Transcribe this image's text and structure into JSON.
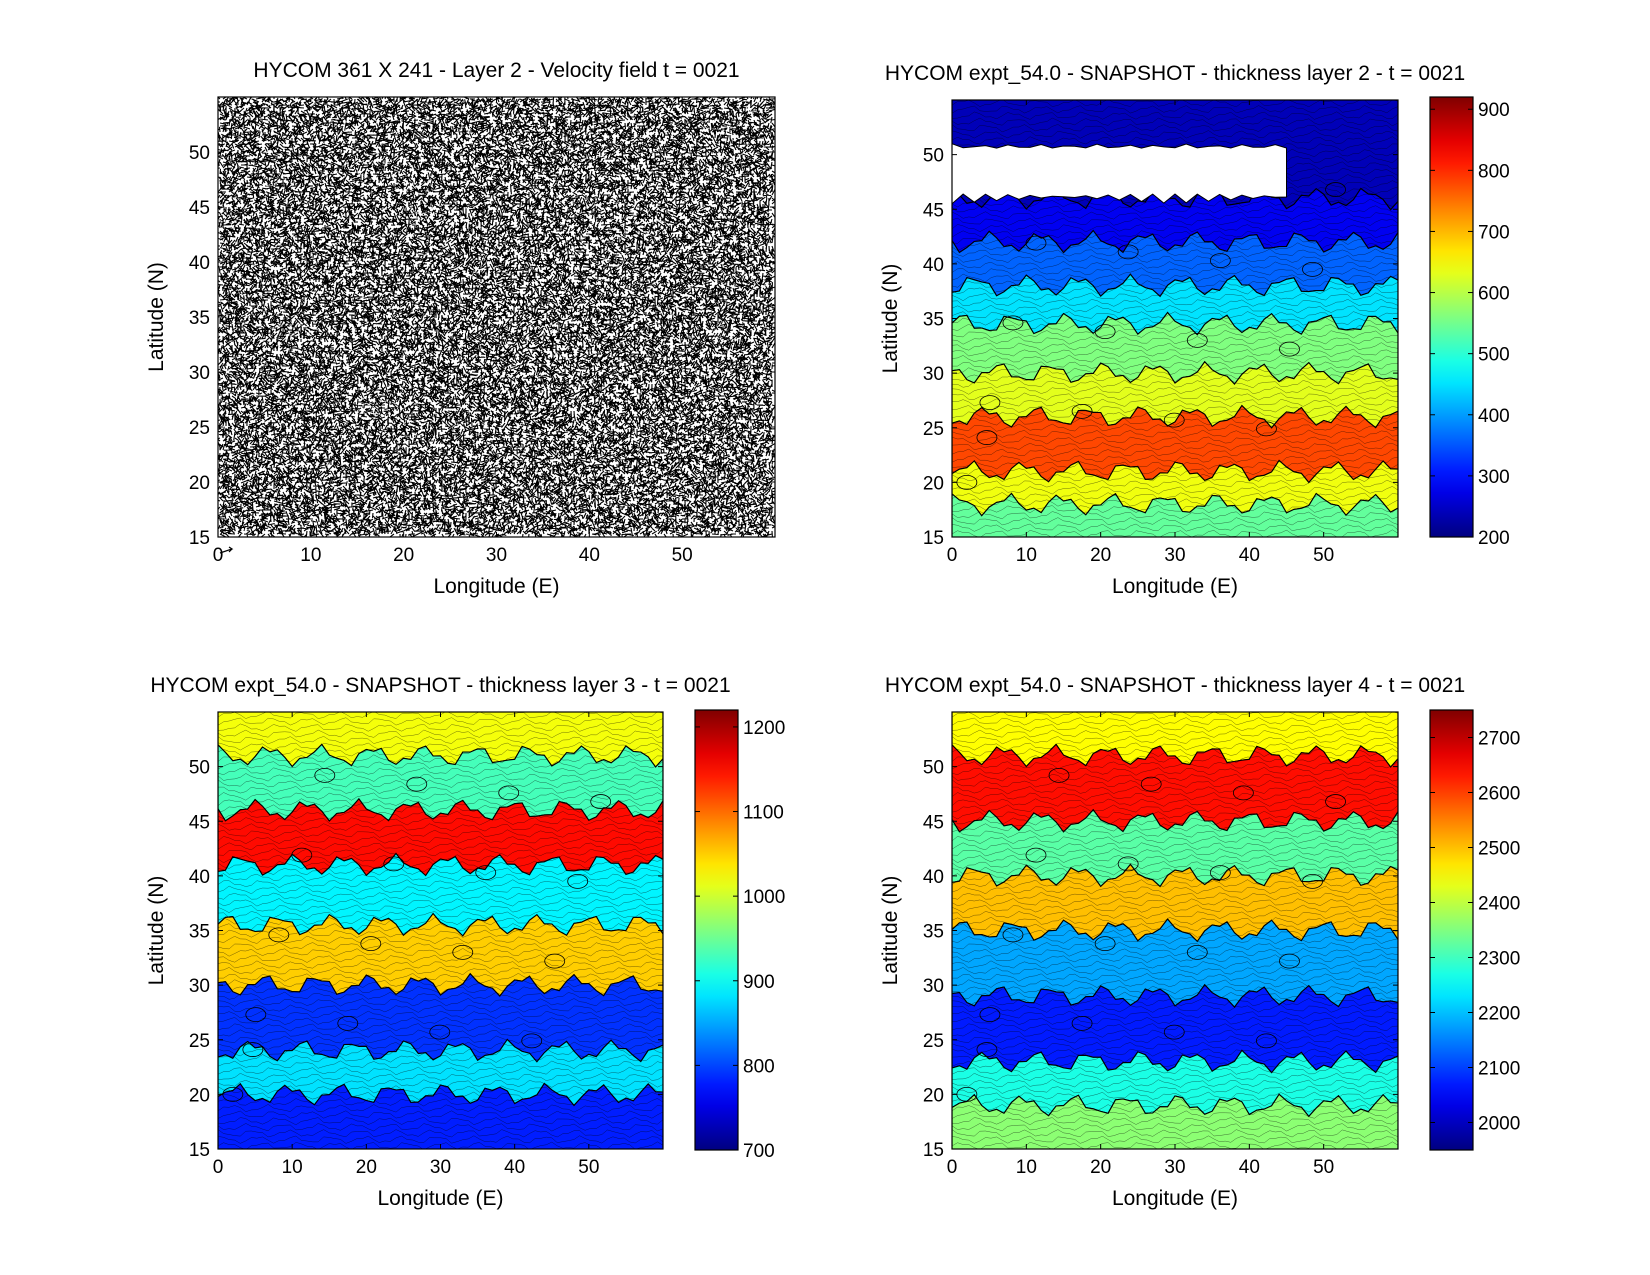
{
  "chart_data": [
    {
      "type": "quiver",
      "title": "HYCOM 361 X 241 - Layer 2 - Velocity field  t = 0021",
      "xlabel": "Longitude (E)",
      "ylabel": "Latitude (N)",
      "xlim": [
        0,
        60
      ],
      "ylim": [
        15,
        55
      ],
      "xticks": [
        0,
        10,
        20,
        30,
        40,
        50
      ],
      "yticks": [
        15,
        20,
        25,
        30,
        35,
        40,
        45,
        50
      ],
      "colorbar": null
    },
    {
      "type": "contourf",
      "title": "HYCOM expt_54.0 - SNAPSHOT - thickness layer 2 - t = 0021",
      "xlabel": "Longitude (E)",
      "ylabel": "Latitude (N)",
      "xlim": [
        0,
        60
      ],
      "ylim": [
        15,
        55
      ],
      "xticks": [
        0,
        10,
        20,
        30,
        40,
        50
      ],
      "yticks": [
        15,
        20,
        25,
        30,
        35,
        40,
        45,
        50
      ],
      "colorbar": {
        "min": 200,
        "max": 920,
        "ticks": [
          200,
          300,
          400,
          500,
          600,
          700,
          800,
          900
        ]
      },
      "bands": [
        {
          "lat": [
            46,
            55
          ],
          "value": 240
        },
        {
          "lat": [
            42,
            46
          ],
          "value": 280
        },
        {
          "lat": [
            38,
            42
          ],
          "value": 360
        },
        {
          "lat": [
            34.5,
            38
          ],
          "value": 450
        },
        {
          "lat": [
            30,
            34.5
          ],
          "value": 560
        },
        {
          "lat": [
            26,
            30
          ],
          "value": 630
        },
        {
          "lat": [
            21,
            26
          ],
          "value": 780
        },
        {
          "lat": [
            18,
            21
          ],
          "value": 640
        },
        {
          "lat": [
            15,
            18
          ],
          "value": 540
        }
      ],
      "empty_region": {
        "lon": [
          0,
          45
        ],
        "lat": [
          45.5,
          51
        ]
      }
    },
    {
      "type": "contourf",
      "title": "HYCOM expt_54.0 - SNAPSHOT - thickness layer 3 - t = 0021",
      "xlabel": "Longitude (E)",
      "ylabel": "Latitude (N)",
      "xlim": [
        0,
        60
      ],
      "ylim": [
        15,
        55
      ],
      "xticks": [
        0,
        10,
        20,
        30,
        40,
        50
      ],
      "yticks": [
        15,
        20,
        25,
        30,
        35,
        40,
        45,
        50
      ],
      "colorbar": {
        "min": 700,
        "max": 1220,
        "ticks": [
          700,
          800,
          900,
          1000,
          1100,
          1200
        ]
      },
      "bands": [
        {
          "lat": [
            51,
            55
          ],
          "value": 1020
        },
        {
          "lat": [
            46,
            51
          ],
          "value": 930
        },
        {
          "lat": [
            41,
            46
          ],
          "value": 1150
        },
        {
          "lat": [
            35.5,
            41
          ],
          "value": 890
        },
        {
          "lat": [
            30,
            35.5
          ],
          "value": 1050
        },
        {
          "lat": [
            24,
            30
          ],
          "value": 790
        },
        {
          "lat": [
            20,
            24
          ],
          "value": 880
        },
        {
          "lat": [
            15,
            20
          ],
          "value": 780
        }
      ]
    },
    {
      "type": "contourf",
      "title": "HYCOM expt_54.0 - SNAPSHOT - thickness layer 4 - t = 0021",
      "xlabel": "Longitude (E)",
      "ylabel": "Latitude (N)",
      "xlim": [
        0,
        60
      ],
      "ylim": [
        15,
        55
      ],
      "xticks": [
        0,
        10,
        20,
        30,
        40,
        50
      ],
      "yticks": [
        15,
        20,
        25,
        30,
        35,
        40,
        45,
        50
      ],
      "colorbar": {
        "min": 1950,
        "max": 2750,
        "ticks": [
          2000,
          2100,
          2200,
          2300,
          2400,
          2500,
          2600,
          2700
        ]
      },
      "bands": [
        {
          "lat": [
            51,
            55
          ],
          "value": 2450
        },
        {
          "lat": [
            45,
            51
          ],
          "value": 2640
        },
        {
          "lat": [
            40,
            45
          ],
          "value": 2320
        },
        {
          "lat": [
            35,
            40
          ],
          "value": 2500
        },
        {
          "lat": [
            29,
            35
          ],
          "value": 2180
        },
        {
          "lat": [
            23,
            29
          ],
          "value": 2070
        },
        {
          "lat": [
            19,
            23
          ],
          "value": 2270
        },
        {
          "lat": [
            15,
            19
          ],
          "value": 2360
        }
      ]
    }
  ]
}
